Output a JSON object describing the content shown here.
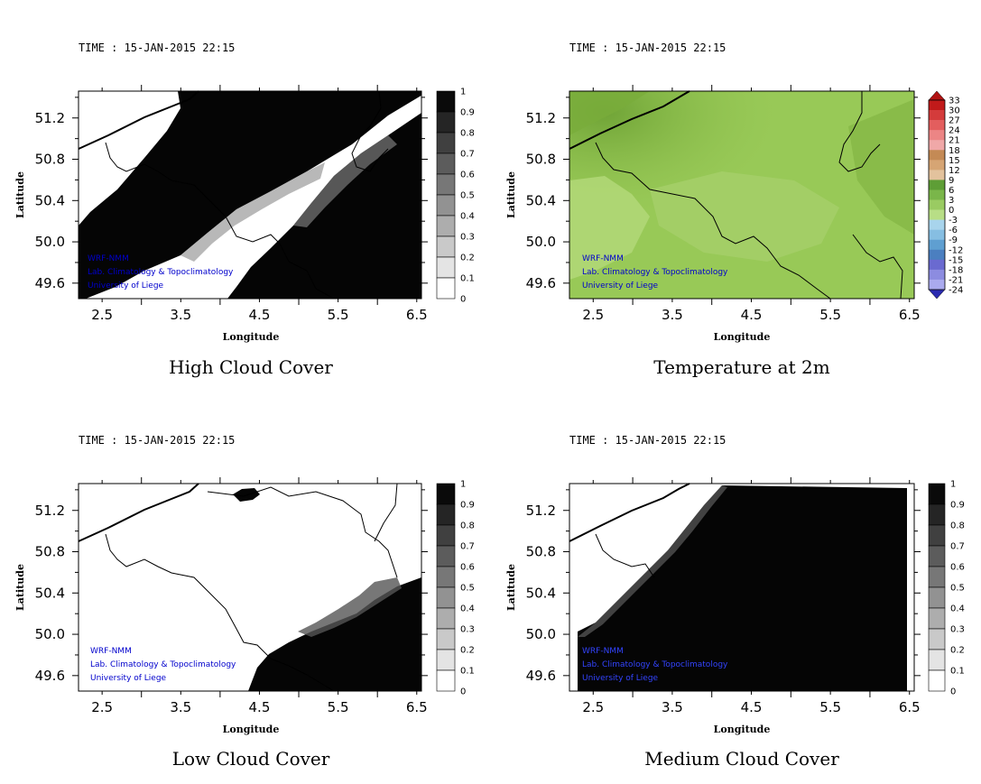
{
  "chart_data": [
    {
      "type": "heatmap",
      "time_label": "TIME : 15-JAN-2015 22:15",
      "title": "High Cloud Cover",
      "xlabel": "Longitude",
      "ylabel": "Latitude",
      "x_ticks": [
        "2.5",
        "3.5",
        "4.5",
        "5.5",
        "6.5"
      ],
      "y_ticks": [
        "51.2",
        "50.8",
        "50.4",
        "50.0",
        "49.6"
      ],
      "colorbar_ticks": [
        "1",
        "0.9",
        "0.8",
        "0.7",
        "0.6",
        "0.5",
        "0.4",
        "0.3",
        "0.2",
        "0.1",
        "0"
      ],
      "credits": [
        "WRF-NMM",
        "Lab. Climatology & Topoclimatology",
        "University of Liege"
      ]
    },
    {
      "type": "heatmap",
      "time_label": "TIME : 15-JAN-2015 22:15",
      "title": "Temperature at 2m",
      "xlabel": "Longitude",
      "ylabel": "Latitude",
      "x_ticks": [
        "2.5",
        "3.5",
        "4.5",
        "5.5",
        "6.5"
      ],
      "y_ticks": [
        "51.2",
        "50.8",
        "50.4",
        "50.0",
        "49.6"
      ],
      "colorbar_ticks": [
        "33",
        "30",
        "27",
        "24",
        "21",
        "18",
        "15",
        "12",
        "9",
        "6",
        "3",
        "0",
        "-3",
        "-6",
        "-9",
        "-12",
        "-15",
        "-18",
        "-21",
        "-24"
      ],
      "credits": [
        "WRF-NMM",
        "Lab. Climatology & Topoclimatology",
        "University of Liege"
      ]
    },
    {
      "type": "heatmap",
      "time_label": "TIME : 15-JAN-2015 22:15",
      "title": "Low Cloud Cover",
      "xlabel": "Longitude",
      "ylabel": "Latitude",
      "x_ticks": [
        "2.5",
        "3.5",
        "4.5",
        "5.5",
        "6.5"
      ],
      "y_ticks": [
        "51.2",
        "50.8",
        "50.4",
        "50.0",
        "49.6"
      ],
      "colorbar_ticks": [
        "1",
        "0.9",
        "0.8",
        "0.7",
        "0.6",
        "0.5",
        "0.4",
        "0.3",
        "0.2",
        "0.1",
        "0"
      ],
      "credits": [
        "WRF-NMM",
        "Lab. Climatology & Topoclimatology",
        "University of Liege"
      ]
    },
    {
      "type": "heatmap",
      "time_label": "TIME : 15-JAN-2015 22:15",
      "title": "Medium Cloud Cover",
      "xlabel": "Longitude",
      "ylabel": "Latitude",
      "x_ticks": [
        "2.5",
        "3.5",
        "4.5",
        "5.5",
        "6.5"
      ],
      "y_ticks": [
        "51.2",
        "50.8",
        "50.4",
        "50.0",
        "49.6"
      ],
      "colorbar_ticks": [
        "1",
        "0.9",
        "0.8",
        "0.7",
        "0.6",
        "0.5",
        "0.4",
        "0.3",
        "0.2",
        "0.1",
        "0"
      ],
      "credits": [
        "WRF-NMM",
        "Lab. Climatology & Topoclimatology",
        "University of Liege"
      ]
    }
  ],
  "colors": {
    "credit_text": "#0000cc",
    "temperature_field": "#9acd5a",
    "temperature_field_dark": "#7fb241"
  }
}
